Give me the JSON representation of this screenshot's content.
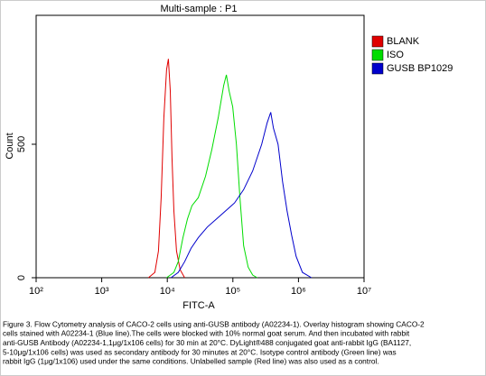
{
  "chart_data": {
    "type": "line",
    "title": "Multi-sample : P1",
    "xlabel": "FITC-A",
    "ylabel": "Count",
    "xscale": "log",
    "xlim": [
      100,
      10000000
    ],
    "xticks": [
      {
        "value": 100,
        "label": "10²"
      },
      {
        "value": 1000,
        "label": "10³"
      },
      {
        "value": 10000,
        "label": "10⁴"
      },
      {
        "value": 100000,
        "label": "10⁵"
      },
      {
        "value": 1000000,
        "label": "10⁶"
      },
      {
        "value": 10000000,
        "label": "10⁷"
      }
    ],
    "ylim": [
      0,
      983
    ],
    "yticks": [
      0,
      500
    ],
    "legend": "upper right",
    "series": [
      {
        "name": "BLANK",
        "color": "#e00000",
        "x": [
          5160,
          6450,
          7320,
          8060,
          8870,
          9750,
          10400,
          11100,
          11800,
          12600,
          13800,
          15700,
          18400
        ],
        "values": [
          0,
          20,
          100,
          300,
          600,
          780,
          820,
          700,
          450,
          250,
          100,
          30,
          0
        ]
      },
      {
        "name": "ISO",
        "color": "#00dd00",
        "x": [
          9750,
          12600,
          14700,
          17300,
          20300,
          23800,
          29700,
          38300,
          47800,
          59800,
          72300,
          79600,
          87500,
          99400,
          113000,
          128000,
          146000,
          171000,
          200000,
          235000
        ],
        "values": [
          0,
          20,
          60,
          150,
          220,
          270,
          300,
          380,
          480,
          600,
          720,
          760,
          700,
          640,
          500,
          300,
          120,
          40,
          10,
          0
        ]
      },
      {
        "name": "GUSB BP1029",
        "color": "#0000cc",
        "x": [
          11400,
          14700,
          18400,
          23000,
          29700,
          40700,
          56100,
          77100,
          106000,
          146000,
          200000,
          275000,
          333000,
          378000,
          416000,
          488000,
          572000,
          670000,
          785000,
          920000,
          1150000,
          1580000
        ],
        "values": [
          0,
          20,
          60,
          110,
          150,
          190,
          220,
          250,
          280,
          330,
          400,
          500,
          580,
          620,
          560,
          500,
          360,
          250,
          160,
          80,
          20,
          0
        ]
      }
    ]
  },
  "caption": [
    "Figure 3. Flow Cytometry analysis of CACO-2 cells using anti-GUSB antibody (A02234-1). Overlay histogram showing CACO-2",
    "cells stained with A02234-1 (Blue line).The cells were blocked with 10% normal goat serum. And then incubated with rabbit",
    "anti-GUSB Antibody (A02234-1,1μg/1x106 cells) for 30 min at 20°C. DyLight®488 conjugated goat anti-rabbit IgG (BA1127,",
    "5-10μg/1x106 cells) was used as secondary antibody for 30 minutes at 20°C. Isotype control antibody (Green line) was",
    "rabbit IgG (1μg/1x106) used under the same conditions. Unlabelled sample (Red line) was also used as a control."
  ]
}
